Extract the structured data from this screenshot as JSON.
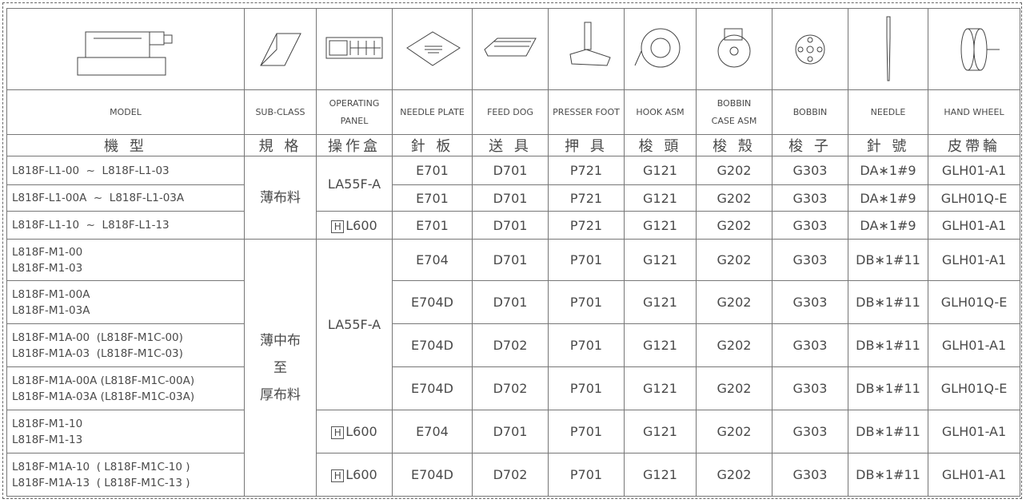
{
  "header": {
    "english": [
      [
        "MODEL"
      ],
      [
        "SUB-CLASS"
      ],
      [
        "OPERATING",
        "PANEL"
      ],
      [
        "NEEDLE PLATE"
      ],
      [
        "FEED  DOG"
      ],
      [
        "PRESSER FOOT"
      ],
      [
        "HOOK  ASM"
      ],
      [
        "BOBBIN",
        "CASE  ASM"
      ],
      [
        "BOBBIN"
      ],
      [
        "NEEDLE"
      ],
      [
        "HAND WHEEL"
      ]
    ],
    "chinese": [
      "機 型",
      "規 格",
      "操作盒",
      "針 板",
      "送 具",
      "押 具",
      "梭 頭",
      "梭 殼",
      "梭 子",
      "針 號",
      "皮帶輪"
    ]
  },
  "sub_classes": [
    [
      "薄布料"
    ],
    [
      "薄中布",
      "至",
      "厚布料"
    ]
  ],
  "panels": [
    "LA55F-A",
    {
      "mark": "H",
      "text": "L600"
    },
    "LA55F-A",
    {
      "mark": "H",
      "text": "L600"
    },
    {
      "mark": "H",
      "text": "L600"
    }
  ],
  "rows": [
    {
      "model": [
        "L818F-L1-00  ~  L818F-L1-03"
      ],
      "parts": [
        "E701",
        "D701",
        "P721",
        "G121",
        "G202",
        "G303",
        "DA∗1#9",
        "GLH01-A1"
      ]
    },
    {
      "model": [
        "L818F-L1-00A  ~  L818F-L1-03A"
      ],
      "parts": [
        "E701",
        "D701",
        "P721",
        "G121",
        "G202",
        "G303",
        "DA∗1#9",
        "GLH01Q-E"
      ]
    },
    {
      "model": [
        "L818F-L1-10  ~  L818F-L1-13"
      ],
      "parts": [
        "E701",
        "D701",
        "P721",
        "G121",
        "G202",
        "G303",
        "DA∗1#9",
        "GLH01-A1"
      ]
    },
    {
      "model": [
        "L818F-M1-00",
        "L818F-M1-03"
      ],
      "parts": [
        "E704",
        "D701",
        "P701",
        "G121",
        "G202",
        "G303",
        "DB∗1#11",
        "GLH01-A1"
      ]
    },
    {
      "model": [
        "L818F-M1-00A",
        "L818F-M1-03A"
      ],
      "parts": [
        "E704D",
        "D701",
        "P701",
        "G121",
        "G202",
        "G303",
        "DB∗1#11",
        "GLH01Q-E"
      ]
    },
    {
      "model": [
        "L818F-M1A-00  (L818F-M1C-00)",
        "L818F-M1A-03  (L818F-M1C-03)"
      ],
      "parts": [
        "E704D",
        "D702",
        "P701",
        "G121",
        "G202",
        "G303",
        "DB∗1#11",
        "GLH01-A1"
      ]
    },
    {
      "model": [
        "L818F-M1A-00A (L818F-M1C-00A)",
        "L818F-M1A-03A (L818F-M1C-03A)"
      ],
      "parts": [
        "E704D",
        "D702",
        "P701",
        "G121",
        "G202",
        "G303",
        "DB∗1#11",
        "GLH01Q-E"
      ]
    },
    {
      "model": [
        "L818F-M1-10",
        "L818F-M1-13"
      ],
      "parts": [
        "E704",
        "D701",
        "P701",
        "G121",
        "G202",
        "G303",
        "DB∗1#11",
        "GLH01-A1"
      ]
    },
    {
      "model": [
        "L818F-M1A-10  ( L818F-M1C-10 )",
        "L818F-M1A-13  ( L818F-M1C-13 )"
      ],
      "parts": [
        "E704D",
        "D702",
        "P701",
        "G121",
        "G202",
        "G303",
        "DB∗1#11",
        "GLH01-A1"
      ]
    }
  ]
}
